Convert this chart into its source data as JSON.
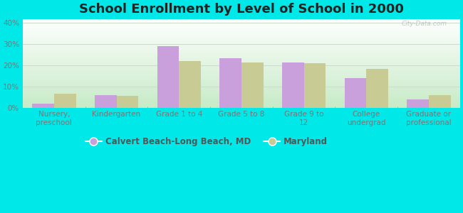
{
  "title": "School Enrollment by Level of School in 2000",
  "categories": [
    "Nursery,\npreschool",
    "Kindergarten",
    "Grade 1 to 4",
    "Grade 5 to 8",
    "Grade 9 to\n12",
    "College\nundergrad",
    "Graduate or\nprofessional"
  ],
  "calvert_values": [
    2.0,
    6.0,
    29.0,
    23.5,
    21.5,
    14.0,
    4.0
  ],
  "maryland_values": [
    6.5,
    5.5,
    22.0,
    21.5,
    21.0,
    18.5,
    6.0
  ],
  "calvert_color": "#c9a0dc",
  "maryland_color": "#c8cc94",
  "background_outer": "#00e8e8",
  "ylim": [
    0,
    42
  ],
  "yticks": [
    0,
    10,
    20,
    30,
    40
  ],
  "legend_label1": "Calvert Beach-Long Beach, MD",
  "legend_label2": "Maryland",
  "bar_width": 0.35,
  "title_fontsize": 13,
  "tick_fontsize": 7.5,
  "legend_fontsize": 8.5,
  "grid_color": "#ccddcc",
  "watermark": "City-Data.com"
}
